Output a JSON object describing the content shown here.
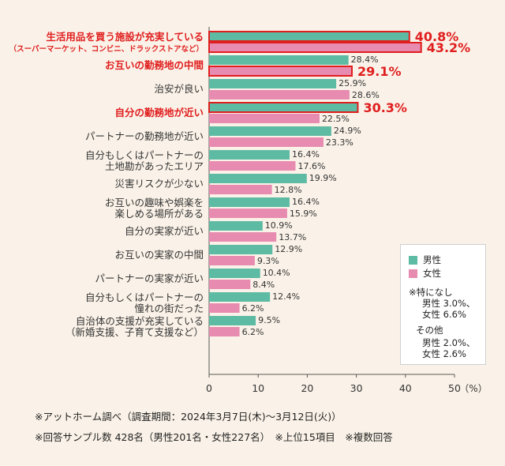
{
  "chart_data": {
    "type": "bar",
    "orientation": "horizontal",
    "unit_label": "（%）",
    "xlim": [
      0,
      50
    ],
    "xticks": [
      0,
      10,
      20,
      30,
      40,
      50
    ],
    "categories": [
      {
        "label": [
          "生活用品を買う施設が充実している",
          "（スーパーマーケット、コンビニ、ドラックストアなど）"
        ],
        "highlight": true,
        "male": 40.8,
        "female": 43.2,
        "male_hl": true,
        "female_hl": true
      },
      {
        "label": [
          "お互いの勤務地の中間"
        ],
        "highlight": true,
        "male": 28.4,
        "female": 29.1,
        "male_hl": false,
        "female_hl": true
      },
      {
        "label": [
          "治安が良い"
        ],
        "highlight": false,
        "male": 25.9,
        "female": 28.6,
        "male_hl": false,
        "female_hl": false
      },
      {
        "label": [
          "自分の勤務地が近い"
        ],
        "highlight": true,
        "male": 30.3,
        "female": 22.5,
        "male_hl": true,
        "female_hl": false
      },
      {
        "label": [
          "パートナーの勤務地が近い"
        ],
        "highlight": false,
        "male": 24.9,
        "female": 23.3,
        "male_hl": false,
        "female_hl": false
      },
      {
        "label": [
          "自分もしくはパートナーの",
          "土地勘があったエリア"
        ],
        "highlight": false,
        "male": 16.4,
        "female": 17.6,
        "male_hl": false,
        "female_hl": false
      },
      {
        "label": [
          "災害リスクが少ない"
        ],
        "highlight": false,
        "male": 19.9,
        "female": 12.8,
        "male_hl": false,
        "female_hl": false
      },
      {
        "label": [
          "お互いの趣味や娯楽を",
          "楽しめる場所がある"
        ],
        "highlight": false,
        "male": 16.4,
        "female": 15.9,
        "male_hl": false,
        "female_hl": false
      },
      {
        "label": [
          "自分の実家が近い"
        ],
        "highlight": false,
        "male": 10.9,
        "female": 13.7,
        "male_hl": false,
        "female_hl": false
      },
      {
        "label": [
          "お互いの実家の中間"
        ],
        "highlight": false,
        "male": 12.9,
        "female": 9.3,
        "male_hl": false,
        "female_hl": false
      },
      {
        "label": [
          "パートナーの実家が近い"
        ],
        "highlight": false,
        "male": 10.4,
        "female": 8.4,
        "male_hl": false,
        "female_hl": false
      },
      {
        "label": [
          "自分もしくはパートナーの",
          "憧れの街だった"
        ],
        "highlight": false,
        "male": 12.4,
        "female": 6.2,
        "male_hl": false,
        "female_hl": false
      },
      {
        "label": [
          "自治体の支援が充実している",
          "（新婚支援、子育て支援など）"
        ],
        "highlight": false,
        "male": 9.5,
        "female": 6.2,
        "male_hl": false,
        "female_hl": false
      }
    ],
    "series": [
      {
        "name": "男性",
        "color": "#5dbaa3"
      },
      {
        "name": "女性",
        "color": "#e78bb0"
      }
    ],
    "highlight_color": "#e01e1e"
  },
  "legend": {
    "male": "男性",
    "female": "女性",
    "none_title": "※特になし",
    "none_male": "男性 3.0%、",
    "none_female": "女性 6.6%",
    "other_title": "その他",
    "other_male": "男性 2.0%、",
    "other_female": "女性 2.6%"
  },
  "footnotes": {
    "line1": "※アットホーム調べ（調査期間：2024年3月7日(木)～3月12日(火)）",
    "line2": "※回答サンプル数 428名（男性201名・女性227名）　※上位15項目　※複数回答"
  }
}
